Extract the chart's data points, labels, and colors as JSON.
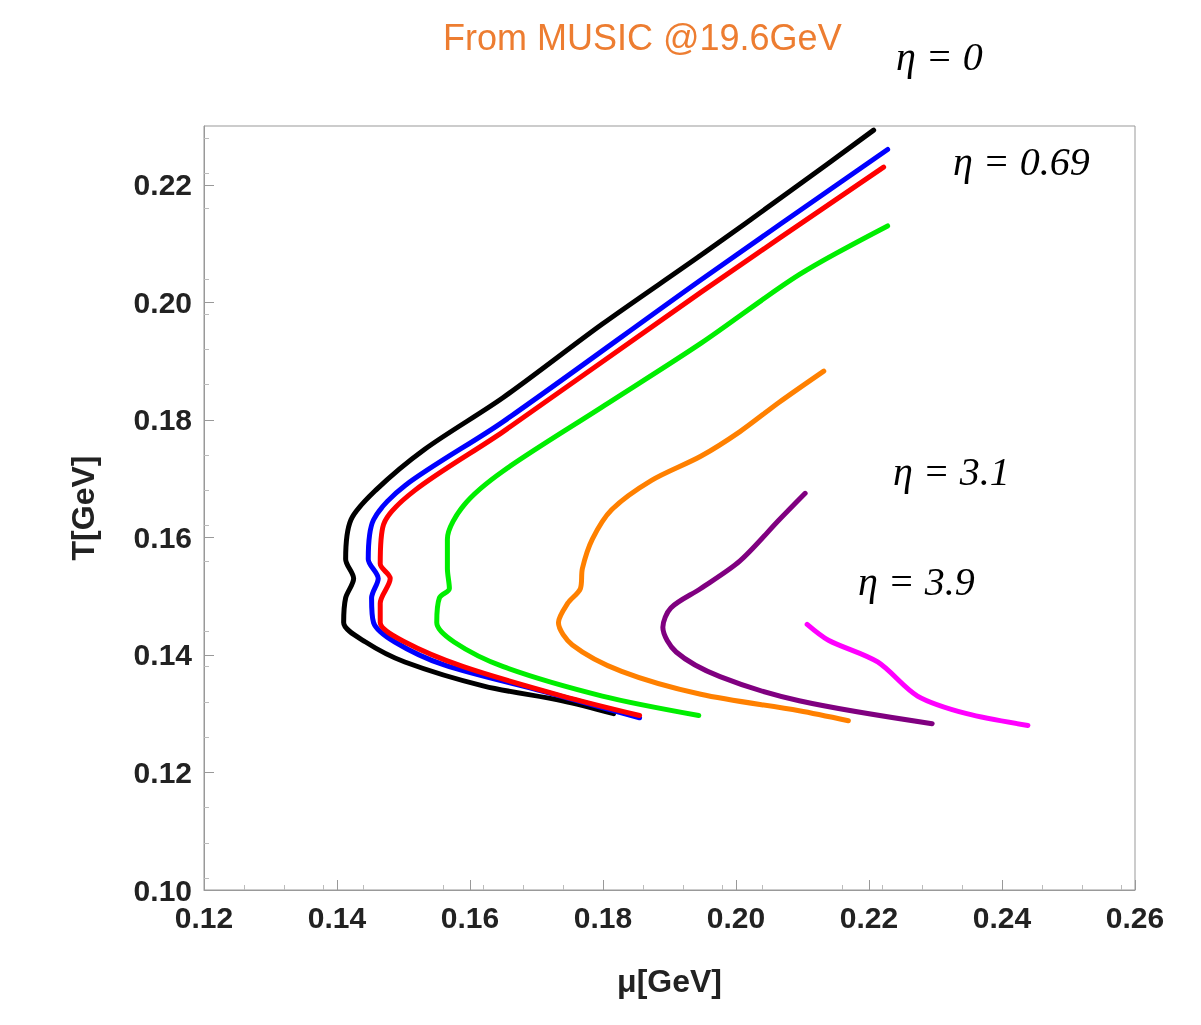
{
  "chart_data": {
    "type": "line",
    "title": "From MUSIC @19.6GeV",
    "xlabel": "μ[GeV]",
    "ylabel": "T[GeV]",
    "xlim": [
      0.12,
      0.26
    ],
    "xticks": [
      0.12,
      0.14,
      0.16,
      0.18,
      {
        "value": 0.2,
        "label": "0.20"
      },
      0.22,
      0.24,
      0.26
    ],
    "ylim": [
      0.1,
      0.23
    ],
    "yticks": [
      {
        "value": 0.1,
        "label": "0.10"
      },
      0.12,
      0.14,
      0.16,
      0.18,
      {
        "value": 0.2,
        "label": "0.20"
      },
      0.22
    ],
    "grid": false,
    "marker": "none",
    "line_style": "solid",
    "annotations": [
      "η = 0",
      "η = 0.69",
      "η = 3.1",
      "η = 3.9"
    ],
    "series": [
      {
        "color": "#000000",
        "x": [
          0.2207,
          0.208,
          0.1947,
          0.1799,
          0.165,
          0.1532,
          0.1458,
          0.1421,
          0.1413,
          0.1425,
          0.1413,
          0.141,
          0.1443,
          0.1502,
          0.1621,
          0.1739,
          0.1816
        ],
        "values": [
          0.2293,
          0.2188,
          0.208,
          0.1963,
          0.1838,
          0.175,
          0.168,
          0.163,
          0.1563,
          0.153,
          0.1497,
          0.1455,
          0.1422,
          0.1388,
          0.1347,
          0.1322,
          0.13
        ]
      },
      {
        "color": "#0000ff",
        "x": [
          0.2228,
          0.1947,
          0.165,
          0.1502,
          0.1455,
          0.1447,
          0.1462,
          0.1452,
          0.1455,
          0.1487,
          0.1561,
          0.171,
          0.1855
        ],
        "values": [
          0.226,
          0.2038,
          0.1797,
          0.1688,
          0.163,
          0.1563,
          0.153,
          0.1497,
          0.1455,
          0.1422,
          0.1383,
          0.1338,
          0.1293
        ]
      },
      {
        "color": "#ff0000",
        "x": [
          0.2222,
          0.1947,
          0.165,
          0.1517,
          0.147,
          0.1465,
          0.148,
          0.1465,
          0.1465,
          0.1502,
          0.159,
          0.1739,
          0.1855
        ],
        "values": [
          0.223,
          0.2017,
          0.178,
          0.168,
          0.1622,
          0.1555,
          0.153,
          0.1488,
          0.1455,
          0.1422,
          0.138,
          0.133,
          0.1297
        ]
      },
      {
        "color": "#00ee00",
        "x": [
          0.2228,
          0.2095,
          0.1947,
          0.1799,
          0.165,
          0.1591,
          0.1566,
          0.1566,
          0.1569,
          0.1554,
          0.155,
          0.1576,
          0.165,
          0.1799,
          0.1944
        ],
        "values": [
          0.213,
          0.2047,
          0.193,
          0.1822,
          0.1713,
          0.1655,
          0.1597,
          0.1547,
          0.1513,
          0.1497,
          0.1455,
          0.1422,
          0.138,
          0.133,
          0.1297
        ]
      },
      {
        "color": "#ff8000",
        "x": [
          0.2132,
          0.2065,
          0.2006,
          0.1947,
          0.1873,
          0.1813,
          0.1784,
          0.1769,
          0.1766,
          0.1747,
          0.1733,
          0.1754,
          0.1828,
          0.1947,
          0.2095,
          0.2169
        ],
        "values": [
          0.1883,
          0.183,
          0.178,
          0.1738,
          0.1697,
          0.1647,
          0.1597,
          0.1547,
          0.1513,
          0.1488,
          0.1455,
          0.1417,
          0.1372,
          0.1333,
          0.1305,
          0.1288
        ]
      },
      {
        "color": "#800080",
        "x": [
          0.2104,
          0.2065,
          0.2006,
          0.1947,
          0.1902,
          0.189,
          0.191,
          0.1976,
          0.2095,
          0.2295
        ],
        "values": [
          0.1675,
          0.163,
          0.156,
          0.1513,
          0.148,
          0.1447,
          0.1405,
          0.1363,
          0.1322,
          0.1283
        ]
      },
      {
        "color": "#ff00ff",
        "x": [
          0.2107,
          0.2139,
          0.2213,
          0.2273,
          0.2347,
          0.2439
        ],
        "values": [
          0.1452,
          0.1425,
          0.1388,
          0.133,
          0.13,
          0.128
        ]
      }
    ]
  }
}
